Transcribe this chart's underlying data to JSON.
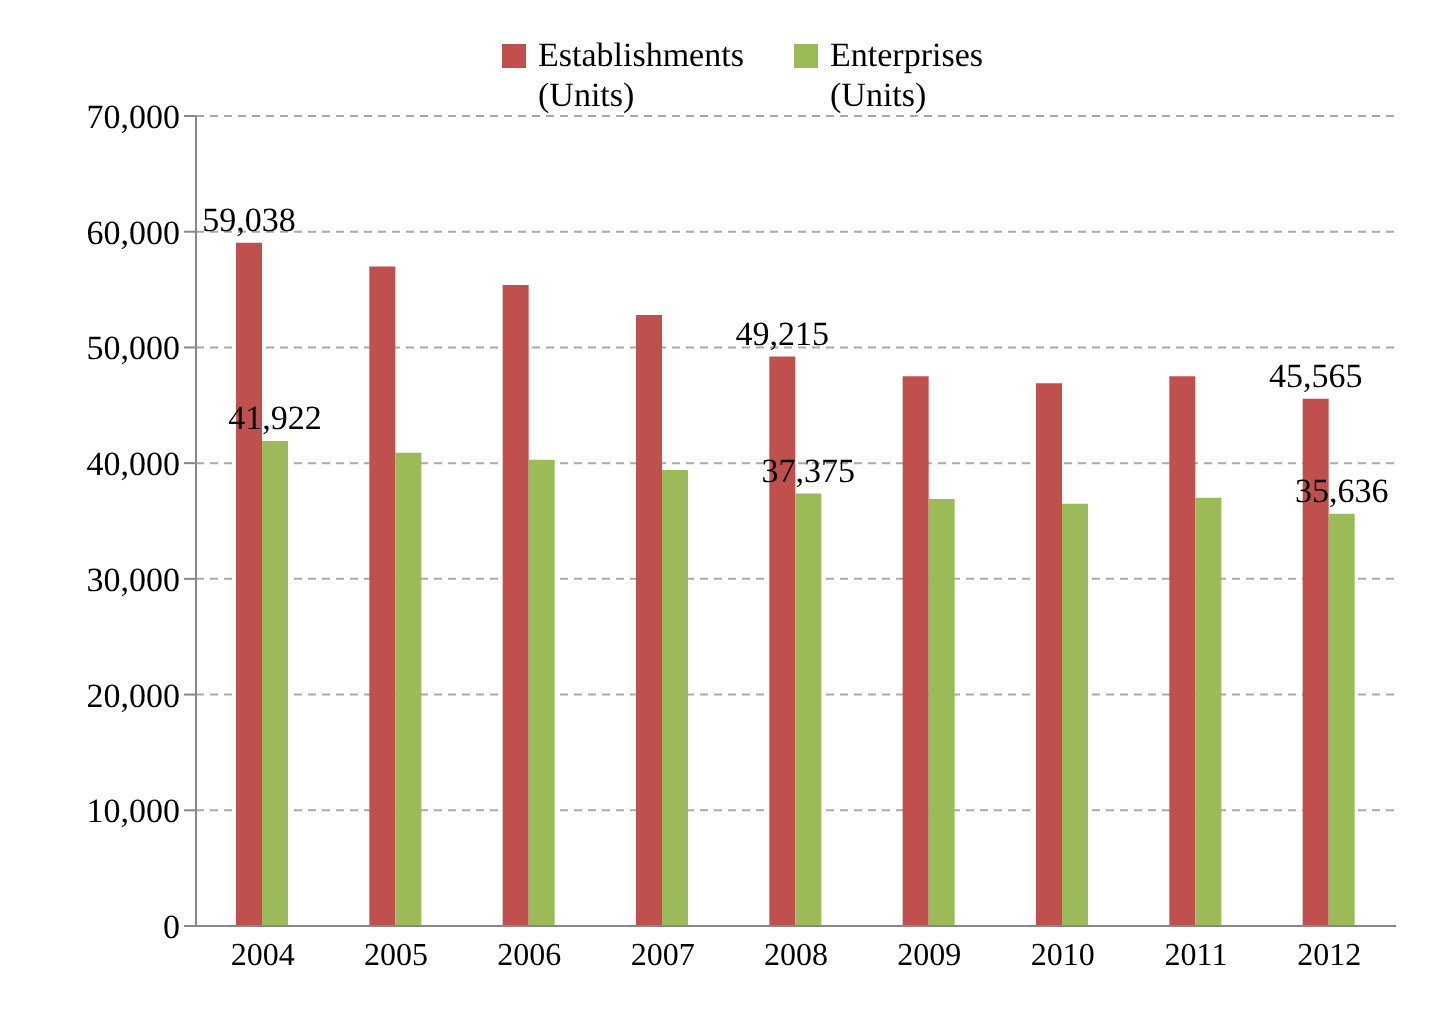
{
  "chart_data": {
    "type": "bar",
    "categories": [
      "2004",
      "2005",
      "2006",
      "2007",
      "2008",
      "2009",
      "2010",
      "2011",
      "2012"
    ],
    "series": [
      {
        "name": "Establishments (Units)",
        "color": "#c0504d",
        "values": [
          59038,
          57000,
          55400,
          52800,
          49215,
          47500,
          46900,
          47500,
          45565
        ],
        "value_labels": [
          "59,038",
          null,
          null,
          null,
          "49,215",
          null,
          null,
          null,
          "45,565"
        ]
      },
      {
        "name": "Enterprises (Units)",
        "color": "#9bbb59",
        "values": [
          41922,
          40900,
          40300,
          39400,
          37375,
          36900,
          36500,
          37000,
          35636
        ],
        "value_labels": [
          "41,922",
          null,
          null,
          null,
          "37,375",
          null,
          null,
          null,
          "35,636"
        ]
      }
    ],
    "ylim": [
      0,
      70000
    ],
    "yticks": [
      0,
      {
        "value": 10000,
        "label": "10,000"
      },
      {
        "value": 20000,
        "label": "20,000"
      },
      {
        "value": 30000,
        "label": "30,000"
      },
      {
        "value": 40000,
        "label": "40,000"
      },
      {
        "value": 50000,
        "label": "50,000"
      },
      {
        "value": 60000,
        "label": "60,000"
      },
      {
        "value": 70000,
        "label": "70,000"
      }
    ],
    "grid": "y",
    "legend": "top"
  }
}
